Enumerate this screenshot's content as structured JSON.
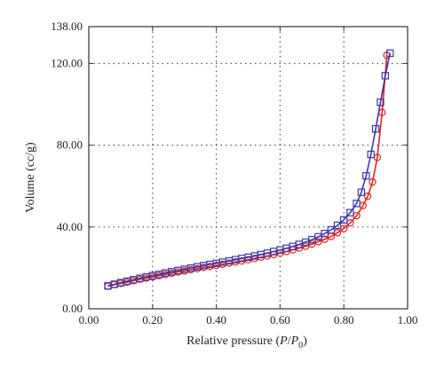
{
  "chart_data": {
    "type": "scatter",
    "xlabel_parts": {
      "text": "Relative pressure (",
      "p": "P",
      "slash": "/",
      "p0": "P",
      "sub": "0",
      "close": ")"
    },
    "ylabel": "Volume (cc/g)",
    "xlim": [
      0.0,
      1.0
    ],
    "ylim": [
      0.0,
      138.0
    ],
    "x_ticks": [
      0.0,
      0.2,
      0.4,
      0.6,
      0.8,
      1.0
    ],
    "x_tick_labels": [
      "0.00",
      "0.20",
      "0.40",
      "0.60",
      "0.80",
      "1.00"
    ],
    "y_ticks": [
      0.0,
      40.0,
      80.0,
      120.0,
      138.0
    ],
    "y_tick_labels": [
      "0.00",
      "40.00",
      "80.00",
      "120.00",
      "138.00"
    ],
    "grid": true,
    "series": [
      {
        "marker": "circle",
        "color": "#e8231b",
        "x": [
          0.06,
          0.08,
          0.1,
          0.12,
          0.14,
          0.16,
          0.18,
          0.2,
          0.22,
          0.24,
          0.26,
          0.28,
          0.3,
          0.32,
          0.34,
          0.36,
          0.38,
          0.4,
          0.42,
          0.44,
          0.46,
          0.48,
          0.5,
          0.52,
          0.54,
          0.56,
          0.58,
          0.6,
          0.62,
          0.64,
          0.66,
          0.68,
          0.7,
          0.72,
          0.74,
          0.76,
          0.78,
          0.8,
          0.82,
          0.84,
          0.86,
          0.875,
          0.89,
          0.905,
          0.92,
          0.935
        ],
        "y": [
          11.0,
          11.8,
          12.4,
          13.0,
          13.7,
          14.4,
          15.0,
          15.6,
          16.2,
          16.8,
          17.4,
          18.0,
          18.5,
          19.1,
          19.6,
          20.2,
          20.7,
          21.2,
          21.8,
          22.3,
          22.9,
          23.4,
          24.0,
          24.6,
          25.2,
          25.8,
          26.5,
          27.2,
          28.0,
          28.8,
          29.7,
          30.6,
          31.6,
          32.8,
          34.0,
          35.4,
          37.2,
          39.2,
          42.0,
          45.5,
          50.5,
          55.0,
          62.0,
          74.0,
          96.0,
          124.0
        ]
      },
      {
        "marker": "square",
        "color": "#3b38a8",
        "x": [
          0.06,
          0.08,
          0.1,
          0.12,
          0.14,
          0.16,
          0.18,
          0.2,
          0.22,
          0.24,
          0.26,
          0.28,
          0.3,
          0.32,
          0.34,
          0.36,
          0.38,
          0.4,
          0.42,
          0.44,
          0.46,
          0.48,
          0.5,
          0.52,
          0.54,
          0.56,
          0.58,
          0.6,
          0.62,
          0.64,
          0.66,
          0.68,
          0.7,
          0.72,
          0.74,
          0.76,
          0.78,
          0.8,
          0.82,
          0.84,
          0.855,
          0.87,
          0.885,
          0.9,
          0.915,
          0.93,
          0.945
        ],
        "y": [
          11.2,
          12.0,
          12.8,
          13.5,
          14.2,
          14.9,
          15.6,
          16.2,
          16.8,
          17.5,
          18.1,
          18.7,
          19.3,
          19.9,
          20.5,
          21.1,
          21.7,
          22.2,
          22.8,
          23.4,
          24.0,
          24.6,
          25.2,
          25.8,
          26.5,
          27.2,
          28.0,
          28.8,
          29.6,
          30.5,
          31.5,
          32.6,
          33.8,
          35.2,
          36.8,
          38.6,
          40.8,
          43.5,
          47.0,
          51.5,
          57.0,
          65.0,
          75.5,
          88.0,
          101.0,
          114.0,
          125.0
        ]
      }
    ]
  }
}
